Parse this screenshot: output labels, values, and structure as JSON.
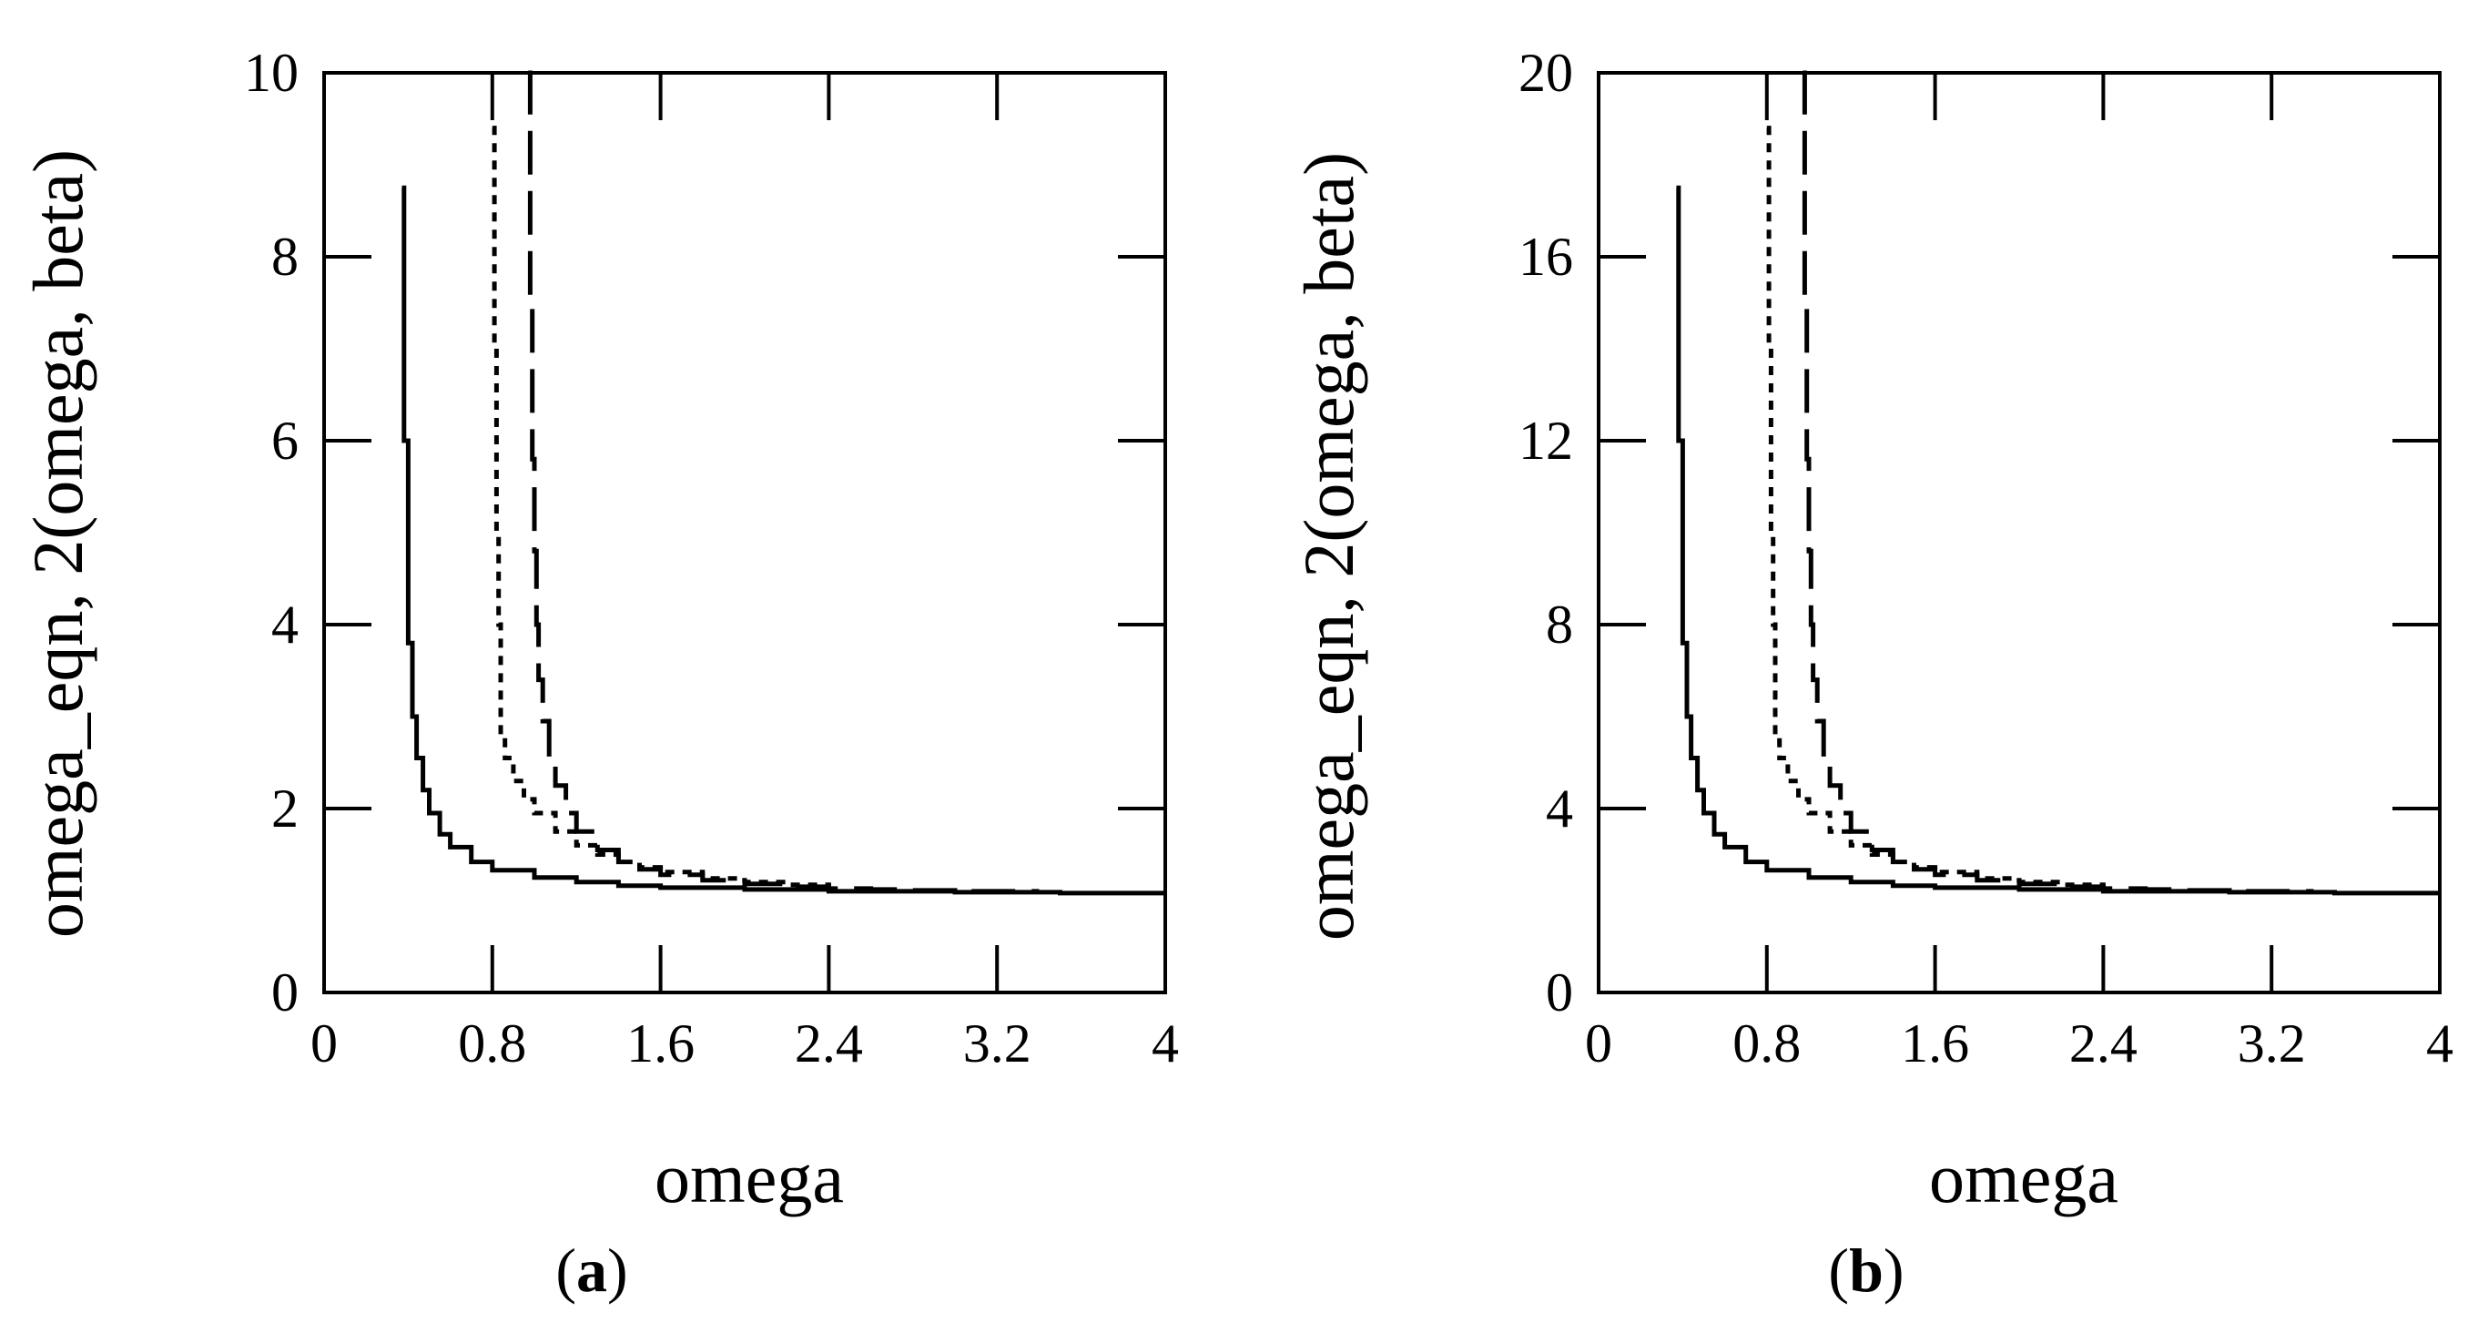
{
  "colors": {
    "ink": "#000000",
    "background": "#ffffff"
  },
  "chart_data": [
    {
      "type": "line",
      "panel_label": "a",
      "xlabel": "omega",
      "ylabel": "omega_eqn, 2(omega, beta)",
      "xlim": [
        0,
        4
      ],
      "ylim": [
        0,
        10
      ],
      "xticks": [
        0,
        0.8,
        1.6,
        2.4,
        3.2,
        4
      ],
      "xtick_labels": [
        "0",
        "0.8",
        "1.6",
        "2.4",
        "3.2",
        "4"
      ],
      "yticks": [
        0,
        2,
        4,
        6,
        8,
        10
      ],
      "ytick_labels": [
        "0",
        "2",
        "4",
        "6",
        "8",
        "10"
      ],
      "grid": false,
      "series": [
        {
          "name": "solid",
          "style": "solid",
          "x": [
            0.37,
            0.38,
            0.4,
            0.42,
            0.44,
            0.47,
            0.5,
            0.55,
            0.6,
            0.7,
            0.8,
            1.0,
            1.2,
            1.4,
            1.6,
            2.0,
            2.4,
            3.0,
            3.5,
            4.0
          ],
          "y": [
            8.75,
            6.0,
            3.8,
            3.0,
            2.55,
            2.2,
            1.95,
            1.72,
            1.58,
            1.42,
            1.33,
            1.25,
            1.2,
            1.16,
            1.14,
            1.12,
            1.1,
            1.09,
            1.08,
            1.08
          ]
        },
        {
          "name": "short-dashed",
          "style": "short-dash",
          "x": [
            0.8,
            0.81,
            0.82,
            0.83,
            0.84,
            0.86,
            0.9,
            0.95,
            1.0,
            1.1,
            1.2,
            1.3,
            1.4,
            1.5,
            1.6,
            1.8,
            2.0,
            2.2,
            2.4
          ],
          "y": [
            9.4,
            7.0,
            5.0,
            4.0,
            2.8,
            2.55,
            2.3,
            2.1,
            1.95,
            1.75,
            1.6,
            1.5,
            1.42,
            1.36,
            1.31,
            1.24,
            1.2,
            1.17,
            1.15
          ]
        },
        {
          "name": "long-dashed",
          "style": "long-dash",
          "x": [
            0.97,
            0.98,
            0.99,
            1.0,
            1.01,
            1.02,
            1.04,
            1.07,
            1.1,
            1.15,
            1.2,
            1.3,
            1.4,
            1.5,
            1.6,
            1.8,
            2.0,
            2.2,
            2.4,
            2.6,
            2.8,
            3.0,
            3.2,
            3.4
          ],
          "y": [
            10.0,
            7.5,
            5.8,
            4.8,
            4.0,
            3.4,
            2.95,
            2.55,
            2.25,
            1.95,
            1.75,
            1.55,
            1.42,
            1.34,
            1.28,
            1.22,
            1.18,
            1.15,
            1.13,
            1.12,
            1.11,
            1.1,
            1.1,
            1.1
          ]
        }
      ]
    },
    {
      "type": "line",
      "panel_label": "b",
      "xlabel": "omega",
      "ylabel": "omega_eqn, 2(omega, beta)",
      "xlim": [
        0,
        4
      ],
      "ylim": [
        0,
        20
      ],
      "xticks": [
        0,
        0.8,
        1.6,
        2.4,
        3.2,
        4
      ],
      "xtick_labels": [
        "0",
        "0.8",
        "1.6",
        "2.4",
        "3.2",
        "4"
      ],
      "yticks": [
        0,
        4,
        8,
        12,
        16,
        20
      ],
      "ytick_labels": [
        "0",
        "4",
        "8",
        "12",
        "16",
        "20"
      ],
      "grid": false,
      "series": [
        {
          "name": "solid",
          "style": "solid",
          "x": [
            0.37,
            0.38,
            0.4,
            0.42,
            0.44,
            0.47,
            0.5,
            0.55,
            0.6,
            0.7,
            0.8,
            1.0,
            1.2,
            1.4,
            1.6,
            2.0,
            2.4,
            3.0,
            3.5,
            4.0
          ],
          "y": [
            17.5,
            12.0,
            7.6,
            6.0,
            5.1,
            4.4,
            3.9,
            3.44,
            3.16,
            2.84,
            2.66,
            2.5,
            2.4,
            2.32,
            2.28,
            2.24,
            2.2,
            2.18,
            2.16,
            2.16
          ]
        },
        {
          "name": "short-dashed",
          "style": "short-dash",
          "x": [
            0.8,
            0.81,
            0.82,
            0.83,
            0.84,
            0.86,
            0.9,
            0.95,
            1.0,
            1.1,
            1.2,
            1.3,
            1.4,
            1.5,
            1.6,
            1.8,
            2.0,
            2.2,
            2.4
          ],
          "y": [
            18.8,
            14.0,
            10.0,
            8.0,
            5.6,
            5.1,
            4.6,
            4.2,
            3.9,
            3.5,
            3.2,
            3.0,
            2.84,
            2.72,
            2.62,
            2.48,
            2.4,
            2.34,
            2.3
          ]
        },
        {
          "name": "long-dashed",
          "style": "long-dash",
          "x": [
            0.97,
            0.98,
            0.99,
            1.0,
            1.01,
            1.02,
            1.04,
            1.07,
            1.1,
            1.15,
            1.2,
            1.3,
            1.4,
            1.5,
            1.6,
            1.8,
            2.0,
            2.2,
            2.4,
            2.6,
            2.8,
            3.0,
            3.2,
            3.4
          ],
          "y": [
            20.0,
            15.0,
            11.6,
            9.6,
            8.0,
            6.8,
            5.9,
            5.1,
            4.5,
            3.9,
            3.5,
            3.1,
            2.84,
            2.68,
            2.56,
            2.44,
            2.36,
            2.3,
            2.26,
            2.24,
            2.22,
            2.2,
            2.2,
            2.2
          ]
        }
      ]
    }
  ]
}
